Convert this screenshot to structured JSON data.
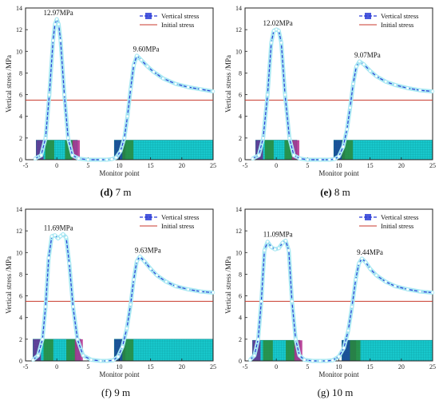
{
  "colors": {
    "vertical": "#2a3cd6",
    "fill": "#a9e8f3",
    "initial": "#c83a2c",
    "cyan_block": "#18c8cc",
    "panel_frame": "#222222"
  },
  "chart_data": [
    {
      "type": "line",
      "panel": "d",
      "caption_letter": "(d)",
      "caption_text": " 7 m",
      "xlabel": "Monitor point",
      "ylabel": "Vertical stress /MPa",
      "xlim": [
        -5,
        25
      ],
      "ylim": [
        0,
        14
      ],
      "xticks": [
        -5,
        0,
        5,
        10,
        15,
        20,
        25
      ],
      "yticks": [
        0,
        2,
        4,
        6,
        8,
        10,
        12,
        14
      ],
      "legend": [
        "Vertical stress",
        "Initial stress"
      ],
      "legend_position": "top-right",
      "initial_stress": 5.5,
      "annotations": [
        "12.97MPa",
        "9.60MPa"
      ],
      "series": [
        {
          "x": [
            -3.5,
            -2.5,
            -1.8,
            -1.2,
            -0.6,
            -0.3,
            0,
            0.3,
            0.6,
            1.2,
            1.8,
            2.5,
            3.5,
            5,
            7,
            8,
            8.8,
            9.5,
            10.2,
            10.8,
            11.3,
            11.8,
            12.3,
            12.8,
            13.5,
            14.5,
            15.5,
            17,
            19,
            21,
            23,
            25
          ],
          "y": [
            0.1,
            0.4,
            2.0,
            6.0,
            11.0,
            12.5,
            12.97,
            12.5,
            11.0,
            6.0,
            2.0,
            0.4,
            0.1,
            0,
            0,
            0,
            0.05,
            0.2,
            0.8,
            2.0,
            4.0,
            6.5,
            8.7,
            9.6,
            9.2,
            8.6,
            8.1,
            7.5,
            7.0,
            6.7,
            6.5,
            6.3
          ]
        }
      ],
      "blocks": [
        [
          -3.3,
          3.3,
          1.8
        ],
        [
          9.2,
          25,
          1.8
        ]
      ]
    },
    {
      "type": "line",
      "panel": "e",
      "caption_letter": "(e)",
      "caption_text": " 8 m",
      "xlabel": "Monitor point",
      "ylabel": "Vertical stress /MPa",
      "xlim": [
        -5,
        25
      ],
      "ylim": [
        0,
        14
      ],
      "xticks": [
        -5,
        0,
        5,
        10,
        15,
        20,
        25
      ],
      "yticks": [
        0,
        2,
        4,
        6,
        8,
        10,
        12,
        14
      ],
      "legend": [
        "Vertical stress",
        "Initial stress"
      ],
      "legend_position": "top-right",
      "initial_stress": 5.5,
      "annotations": [
        "12.02MPa",
        "9.07MPa"
      ],
      "series": [
        {
          "x": [
            -3.8,
            -2.8,
            -2.1,
            -1.4,
            -0.8,
            -0.4,
            0,
            0.4,
            0.8,
            1.4,
            2.1,
            2.8,
            3.8,
            5,
            7,
            8.5,
            9.3,
            10.0,
            10.7,
            11.3,
            11.8,
            12.3,
            12.8,
            13.3,
            14,
            15,
            16,
            17.5,
            19,
            21,
            23,
            25
          ],
          "y": [
            0.1,
            0.4,
            2.0,
            6.0,
            10.8,
            11.9,
            12.02,
            11.9,
            10.8,
            6.0,
            2.0,
            0.4,
            0.1,
            0,
            0,
            0,
            0.05,
            0.3,
            1.2,
            2.8,
            4.8,
            7.0,
            8.6,
            9.07,
            8.8,
            8.2,
            7.7,
            7.2,
            6.9,
            6.6,
            6.4,
            6.3
          ]
        }
      ],
      "blocks": [
        [
          -3.3,
          3.3,
          1.8
        ],
        [
          9.2,
          25,
          1.8
        ]
      ]
    },
    {
      "type": "line",
      "panel": "f",
      "caption_letter": "(f)",
      "caption_text": " 9 m",
      "xlabel": "Monitor point",
      "ylabel": "Vertical stress /MPa",
      "xlim": [
        -5,
        25
      ],
      "ylim": [
        0,
        14
      ],
      "xticks": [
        -5,
        0,
        5,
        10,
        15,
        20,
        25
      ],
      "yticks": [
        0,
        2,
        4,
        6,
        8,
        10,
        12,
        14
      ],
      "legend": [
        "Vertical stress",
        "Initial stress"
      ],
      "legend_position": "top-right",
      "initial_stress": 5.5,
      "annotations": [
        "11.69MPa",
        "9.63MPa"
      ],
      "series": [
        {
          "x": [
            -3.8,
            -3.0,
            -2.3,
            -1.8,
            -1.3,
            -0.8,
            -0.3,
            0.2,
            0.6,
            1.0,
            1.5,
            2.0,
            2.6,
            3.3,
            4.2,
            5.5,
            7,
            8,
            9,
            9.8,
            10.5,
            11.2,
            11.8,
            12.3,
            12.8,
            13.3,
            14,
            15,
            16,
            17.5,
            19,
            21,
            23,
            25
          ],
          "y": [
            0.1,
            0.5,
            2.0,
            5.0,
            9.5,
            11.5,
            11.6,
            11.3,
            11.5,
            11.69,
            11.4,
            9.0,
            5.0,
            2.0,
            0.5,
            0.1,
            0,
            0,
            0.05,
            0.4,
            1.3,
            3.0,
            5.2,
            7.5,
            9.2,
            9.63,
            9.2,
            8.5,
            7.9,
            7.3,
            6.9,
            6.6,
            6.4,
            6.3
          ]
        }
      ],
      "blocks": [
        [
          -3.8,
          3.8,
          2.0
        ],
        [
          9.2,
          25,
          2.0
        ]
      ]
    },
    {
      "type": "line",
      "panel": "g",
      "caption_letter": "(g)",
      "caption_text": " 10 m",
      "xlabel": "Monitor point",
      "ylabel": "Vertical stress /MPa",
      "xlim": [
        -5,
        25
      ],
      "ylim": [
        0,
        14
      ],
      "xticks": [
        -5,
        0,
        5,
        10,
        15,
        20,
        25
      ],
      "yticks": [
        0,
        2,
        4,
        6,
        8,
        10,
        12,
        14
      ],
      "legend": [
        "Vertical stress",
        "Initial stress"
      ],
      "legend_position": "top-right",
      "initial_stress": 5.5,
      "annotations": [
        "11.09MPa",
        "9.44MPa"
      ],
      "series": [
        {
          "x": [
            -4.2,
            -3.5,
            -2.9,
            -2.4,
            -1.9,
            -1.4,
            -0.8,
            -0.2,
            0.4,
            1.0,
            1.5,
            2.0,
            2.5,
            3.1,
            3.7,
            4.5,
            5.8,
            7,
            8,
            9,
            10,
            10.8,
            11.5,
            12.1,
            12.7,
            13.2,
            13.7,
            14.3,
            15,
            16,
            17.5,
            19,
            21,
            23,
            25
          ],
          "y": [
            0.1,
            0.5,
            2.0,
            5.5,
            10.2,
            11.0,
            10.5,
            10.3,
            10.4,
            10.9,
            11.09,
            10.2,
            5.5,
            2.0,
            0.5,
            0.1,
            0,
            0,
            0,
            0.05,
            0.4,
            1.2,
            2.8,
            5.0,
            7.5,
            9.0,
            9.44,
            9.1,
            8.5,
            7.9,
            7.3,
            6.9,
            6.6,
            6.4,
            6.3
          ]
        }
      ],
      "blocks": [
        [
          -3.8,
          3.8,
          1.9
        ],
        [
          10.5,
          25,
          1.9
        ]
      ]
    }
  ]
}
